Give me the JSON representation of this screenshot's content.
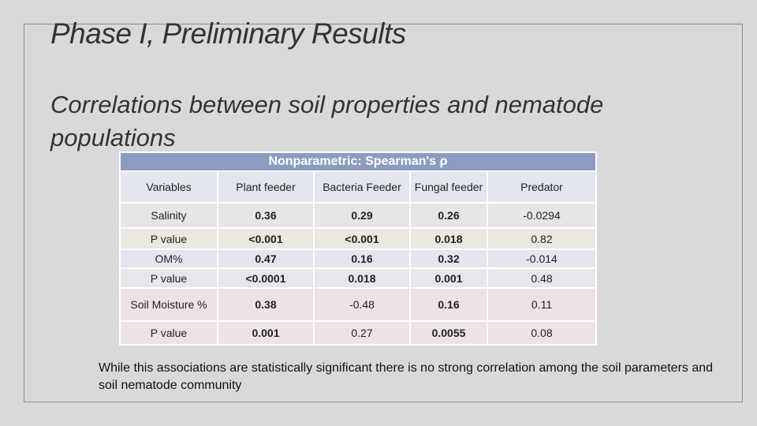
{
  "header": {
    "title": "Phase I, Preliminary Results",
    "subtitle": "Correlations between soil properties and nematode populations"
  },
  "table": {
    "caption": "Nonparametric: Spearman's ρ",
    "columns": [
      "Variables",
      "Plant feeder",
      "Bacteria Feeder",
      "Fungal feeder",
      "Predator"
    ],
    "rows": [
      [
        "Salinity",
        "0.36",
        "0.29",
        "0.26",
        "-0.0294"
      ],
      [
        "P value",
        "<0.001",
        "<0.001",
        "0.018",
        "0.82"
      ],
      [
        "OM%",
        "0.47",
        "0.16",
        "0.32",
        "-0.014"
      ],
      [
        "P value",
        "<0.0001",
        "0.018",
        "0.001",
        "0.48"
      ],
      [
        "Soil Moisture %",
        "0.38",
        "-0.48",
        "0.16",
        "0.11"
      ],
      [
        "P value",
        "0.001",
        "0.27",
        "0.0055",
        "0.08"
      ]
    ]
  },
  "note": "While this associations are statistically significant there is no strong correlation among the soil parameters and soil nematode community"
}
